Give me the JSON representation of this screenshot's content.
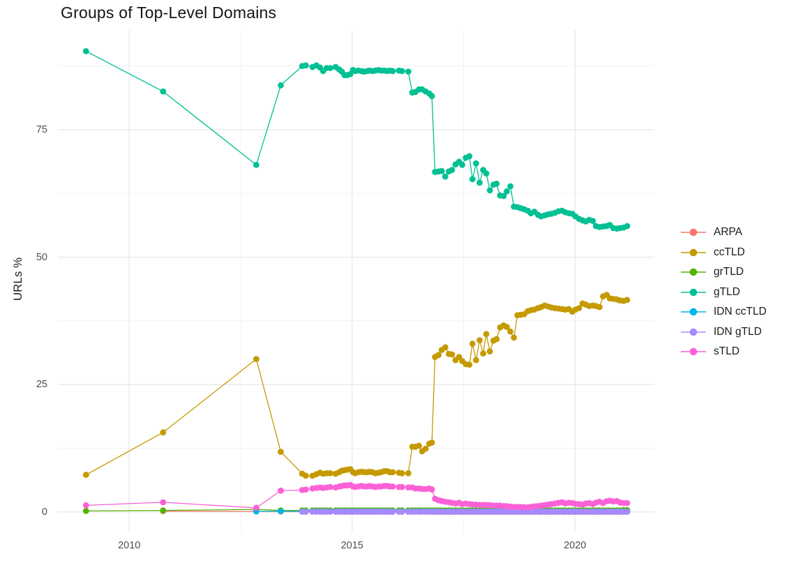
{
  "title": "Groups of Top-Level Domains",
  "y_axis": {
    "label": "URLs %",
    "ticks": [
      0,
      25,
      50,
      75
    ],
    "tick_labels": [
      "0",
      "25",
      "50",
      "75"
    ],
    "minor_ticks": [
      12.5,
      37.5,
      62.5,
      87.5
    ]
  },
  "x_axis": {
    "label": "",
    "ticks": [
      2010,
      2015,
      2020
    ],
    "tick_labels": [
      "2010",
      "2015",
      "2020"
    ],
    "minor_ticks": [
      2012.5,
      2017.5
    ]
  },
  "style": {
    "grid_major_color": "#e4e4e4",
    "grid_minor_color": "#f0f0f0",
    "background": "#ffffff"
  },
  "chart_data": {
    "type": "line",
    "title": "Groups of Top-Level Domains",
    "xlabel": "",
    "ylabel": "URLs %",
    "grid": true,
    "legend_position": "right",
    "x_range": [
      2008.4,
      2021.78
    ],
    "y_range": [
      -4.0,
      94.56
    ],
    "x": [
      2009.03,
      2010.76,
      2012.85,
      2013.4,
      2013.88,
      2013.96,
      2014.11,
      2014.2,
      2014.28,
      2014.35,
      2014.43,
      2014.51,
      2014.63,
      2014.71,
      2014.77,
      2014.83,
      2014.89,
      2014.96,
      2015.02,
      2015.07,
      2015.14,
      2015.21,
      2015.27,
      2015.34,
      2015.39,
      2015.46,
      2015.52,
      2015.59,
      2015.65,
      2015.72,
      2015.79,
      2015.85,
      2015.91,
      2016.05,
      2016.12,
      2016.26,
      2016.35,
      2016.42,
      2016.5,
      2016.57,
      2016.65,
      2016.73,
      2016.79,
      2016.86,
      2016.94,
      2017.01,
      2017.09,
      2017.17,
      2017.24,
      2017.32,
      2017.4,
      2017.47,
      2017.55,
      2017.63,
      2017.7,
      2017.78,
      2017.86,
      2017.94,
      2018.01,
      2018.09,
      2018.17,
      2018.24,
      2018.32,
      2018.4,
      2018.47,
      2018.55,
      2018.63,
      2018.71,
      2018.78,
      2018.86,
      2018.94,
      2019.01,
      2019.09,
      2019.17,
      2019.24,
      2019.32,
      2019.4,
      2019.47,
      2019.55,
      2019.63,
      2019.71,
      2019.78,
      2019.86,
      2019.94,
      2020.01,
      2020.09,
      2020.17,
      2020.24,
      2020.32,
      2020.4,
      2020.47,
      2020.55,
      2020.63,
      2020.71,
      2020.78,
      2020.86,
      2020.94,
      2021.01,
      2021.09,
      2021.17
    ],
    "series": [
      {
        "name": "ARPA",
        "color": "#F8766D",
        "values": [
          null,
          0.15,
          0.1,
          0.08,
          0.05,
          0.05,
          0.05,
          0.05,
          0.05,
          0.05,
          0.05,
          0.05,
          0.05,
          0.05,
          0.05,
          0.05,
          0.05,
          0.05,
          0.05,
          0.05,
          0.05,
          0.05,
          0.05,
          0.05,
          0.05,
          0.05,
          0.05,
          0.05,
          0.05,
          0.05,
          0.05,
          0.05,
          0.05,
          0.05,
          0.05,
          0.05,
          0.05,
          0.05,
          0.05,
          0.05,
          0.05,
          0.05,
          0.05,
          0.03,
          0.03,
          0.03,
          0.03,
          0.03,
          0.03,
          0.03,
          0.03,
          0.03,
          0.03,
          0.03,
          0.03,
          0.03,
          0.03,
          0.03,
          0.03,
          0.03,
          0.03,
          0.03,
          0.03,
          0.03,
          0.03,
          0.03,
          0.03,
          0.03,
          0.03,
          0.03,
          0.03,
          0.03,
          0.03,
          0.03,
          0.03,
          0.03,
          0.03,
          0.03,
          0.03,
          0.03,
          0.03,
          0.03,
          0.03,
          0.03,
          0.03,
          0.03,
          0.03,
          0.03,
          0.03,
          0.03,
          0.03,
          0.03,
          0.03,
          0.03,
          0.03,
          0.03,
          0.03,
          0.03,
          0.03,
          0.03
        ]
      },
      {
        "name": "ccTLD",
        "color": "#C49A00",
        "values": [
          7.3,
          15.6,
          30.0,
          11.8,
          7.5,
          7.1,
          7.1,
          7.4,
          7.7,
          7.5,
          7.6,
          7.6,
          7.5,
          7.8,
          8.1,
          8.2,
          8.3,
          8.4,
          7.8,
          7.6,
          7.8,
          7.9,
          7.8,
          7.8,
          7.9,
          7.8,
          7.6,
          7.7,
          7.8,
          8.0,
          8.0,
          7.8,
          7.8,
          7.7,
          7.6,
          7.6,
          12.8,
          12.8,
          13.0,
          11.9,
          12.4,
          13.4,
          13.6,
          30.4,
          30.8,
          31.8,
          32.3,
          31.0,
          30.9,
          29.8,
          30.4,
          29.6,
          29.0,
          28.9,
          33.0,
          29.8,
          33.7,
          31.1,
          34.9,
          31.5,
          33.6,
          33.9,
          36.2,
          36.6,
          36.3,
          35.4,
          34.2,
          38.6,
          38.7,
          38.8,
          39.4,
          39.6,
          39.7,
          40.0,
          40.2,
          40.5,
          40.3,
          40.1,
          40.0,
          39.9,
          39.8,
          39.7,
          39.8,
          39.3,
          39.7,
          40.0,
          40.9,
          40.7,
          40.4,
          40.5,
          40.4,
          40.2,
          42.3,
          42.6,
          41.9,
          41.8,
          41.7,
          41.5,
          41.4,
          41.6
        ]
      },
      {
        "name": "grTLD",
        "color": "#53B400",
        "values": [
          0.2,
          0.3,
          0.5,
          0.3,
          0.3,
          0.3,
          0.3,
          0.3,
          0.3,
          0.3,
          0.3,
          0.3,
          0.3,
          0.3,
          0.3,
          0.3,
          0.3,
          0.3,
          0.3,
          0.3,
          0.3,
          0.3,
          0.3,
          0.3,
          0.3,
          0.3,
          0.3,
          0.3,
          0.3,
          0.3,
          0.3,
          0.3,
          0.3,
          0.3,
          0.3,
          0.3,
          0.3,
          0.3,
          0.3,
          0.3,
          0.3,
          0.3,
          0.3,
          0.3,
          0.3,
          0.3,
          0.3,
          0.3,
          0.3,
          0.3,
          0.3,
          0.3,
          0.3,
          0.3,
          0.3,
          0.3,
          0.3,
          0.3,
          0.3,
          0.3,
          0.3,
          0.3,
          0.3,
          0.3,
          0.3,
          0.3,
          0.3,
          0.3,
          0.3,
          0.3,
          0.3,
          0.3,
          0.3,
          0.3,
          0.3,
          0.3,
          0.3,
          0.3,
          0.3,
          0.3,
          0.3,
          0.3,
          0.3,
          0.3,
          0.3,
          0.3,
          0.3,
          0.3,
          0.3,
          0.3,
          0.3,
          0.3,
          0.3,
          0.3,
          0.3,
          0.3,
          0.3,
          0.3,
          0.35,
          0.35
        ]
      },
      {
        "name": "gTLD",
        "color": "#00C094",
        "values": [
          90.4,
          82.5,
          68.1,
          83.7,
          87.5,
          87.6,
          87.3,
          87.6,
          87.2,
          86.5,
          87.1,
          87.1,
          87.3,
          86.8,
          86.4,
          85.7,
          85.7,
          85.9,
          86.7,
          86.5,
          86.6,
          86.5,
          86.4,
          86.5,
          86.6,
          86.5,
          86.6,
          86.7,
          86.6,
          86.6,
          86.5,
          86.6,
          86.5,
          86.6,
          86.5,
          86.4,
          82.3,
          82.4,
          82.9,
          82.9,
          82.5,
          82.1,
          81.6,
          66.7,
          66.8,
          66.9,
          65.8,
          66.8,
          67.1,
          68.2,
          68.7,
          68.1,
          69.5,
          69.8,
          65.3,
          68.4,
          64.6,
          67.1,
          66.4,
          63.1,
          64.2,
          64.4,
          62.1,
          62.0,
          62.9,
          63.9,
          59.9,
          59.8,
          59.6,
          59.4,
          59.1,
          58.6,
          58.9,
          58.3,
          58.0,
          58.2,
          58.4,
          58.5,
          58.7,
          59.0,
          59.1,
          58.8,
          58.6,
          58.5,
          58.0,
          57.5,
          57.2,
          57.0,
          57.3,
          57.1,
          56.1,
          55.9,
          56.0,
          56.1,
          56.3,
          55.7,
          55.6,
          55.7,
          55.8,
          56.1
        ]
      },
      {
        "name": "IDN ccTLD",
        "color": "#00B6EB",
        "values": [
          null,
          null,
          0.1,
          0.15,
          0.1,
          0.1,
          0.1,
          0.1,
          0.1,
          0.1,
          0.1,
          0.1,
          0.1,
          0.1,
          0.1,
          0.1,
          0.1,
          0.1,
          0.1,
          0.1,
          0.1,
          0.1,
          0.1,
          0.1,
          0.1,
          0.1,
          0.1,
          0.1,
          0.1,
          0.1,
          0.1,
          0.1,
          0.1,
          0.1,
          0.1,
          0.1,
          0.1,
          0.1,
          0.1,
          0.1,
          0.1,
          0.1,
          0.1,
          0.08,
          0.08,
          0.08,
          0.08,
          0.08,
          0.08,
          0.08,
          0.08,
          0.08,
          0.08,
          0.08,
          0.08,
          0.08,
          0.08,
          0.08,
          0.08,
          0.08,
          0.08,
          0.08,
          0.08,
          0.08,
          0.08,
          0.08,
          0.08,
          0.08,
          0.08,
          0.08,
          0.08,
          0.08,
          0.08,
          0.08,
          0.08,
          0.08,
          0.08,
          0.08,
          0.08,
          0.08,
          0.08,
          0.08,
          0.08,
          0.08,
          0.08,
          0.08,
          0.08,
          0.08,
          0.08,
          0.08,
          0.08,
          0.08,
          0.08,
          0.08,
          0.08,
          0.08,
          0.08,
          0.08,
          0.08,
          0.08
        ]
      },
      {
        "name": "IDN gTLD",
        "color": "#A58AFF",
        "values": [
          null,
          null,
          null,
          null,
          0.05,
          0.05,
          0.05,
          0.05,
          0.05,
          0.05,
          0.05,
          0.05,
          0.05,
          0.05,
          0.05,
          0.05,
          0.05,
          0.05,
          0.05,
          0.05,
          0.05,
          0.05,
          0.05,
          0.05,
          0.05,
          0.05,
          0.05,
          0.05,
          0.05,
          0.05,
          0.05,
          0.05,
          0.05,
          0.05,
          0.05,
          0.05,
          0.05,
          0.05,
          0.05,
          0.05,
          0.05,
          0.05,
          0.05,
          0.05,
          0.05,
          0.05,
          0.05,
          0.05,
          0.05,
          0.05,
          0.05,
          0.05,
          0.05,
          0.05,
          0.05,
          0.05,
          0.05,
          0.05,
          0.05,
          0.05,
          0.05,
          0.05,
          0.05,
          0.05,
          0.05,
          0.05,
          0.05,
          0.05,
          0.05,
          0.05,
          0.05,
          0.05,
          0.05,
          0.05,
          0.05,
          0.05,
          0.05,
          0.05,
          0.05,
          0.05,
          0.05,
          0.05,
          0.05,
          0.05,
          0.05,
          0.05,
          0.05,
          0.05,
          0.05,
          0.05,
          0.05,
          0.05,
          0.05,
          0.05,
          0.05,
          0.05,
          0.05,
          0.05,
          0.05,
          0.05
        ]
      },
      {
        "name": "sTLD",
        "color": "#FB61D7",
        "values": [
          1.3,
          1.9,
          0.8,
          4.2,
          4.3,
          4.4,
          4.6,
          4.7,
          4.8,
          4.7,
          4.8,
          4.9,
          4.8,
          5.0,
          5.1,
          5.2,
          5.2,
          5.3,
          5.0,
          4.9,
          5.0,
          5.1,
          5.0,
          5.0,
          5.1,
          5.0,
          4.9,
          5.0,
          5.0,
          5.1,
          5.1,
          5.0,
          5.0,
          4.9,
          4.9,
          4.8,
          4.8,
          4.6,
          4.6,
          4.5,
          4.5,
          4.6,
          4.4,
          2.6,
          2.3,
          2.15,
          2.0,
          1.9,
          1.8,
          1.65,
          1.8,
          1.55,
          1.65,
          1.55,
          1.45,
          1.45,
          1.4,
          1.4,
          1.35,
          1.35,
          1.25,
          1.25,
          1.25,
          1.15,
          1.15,
          1.05,
          1.0,
          1.0,
          0.95,
          0.95,
          0.9,
          1.0,
          1.1,
          1.15,
          1.25,
          1.35,
          1.45,
          1.55,
          1.65,
          1.8,
          1.9,
          1.7,
          1.8,
          1.75,
          1.6,
          1.55,
          1.45,
          1.65,
          1.75,
          1.55,
          1.85,
          2.0,
          1.75,
          2.1,
          2.2,
          2.05,
          2.15,
          1.85,
          1.75,
          1.75
        ]
      }
    ]
  }
}
